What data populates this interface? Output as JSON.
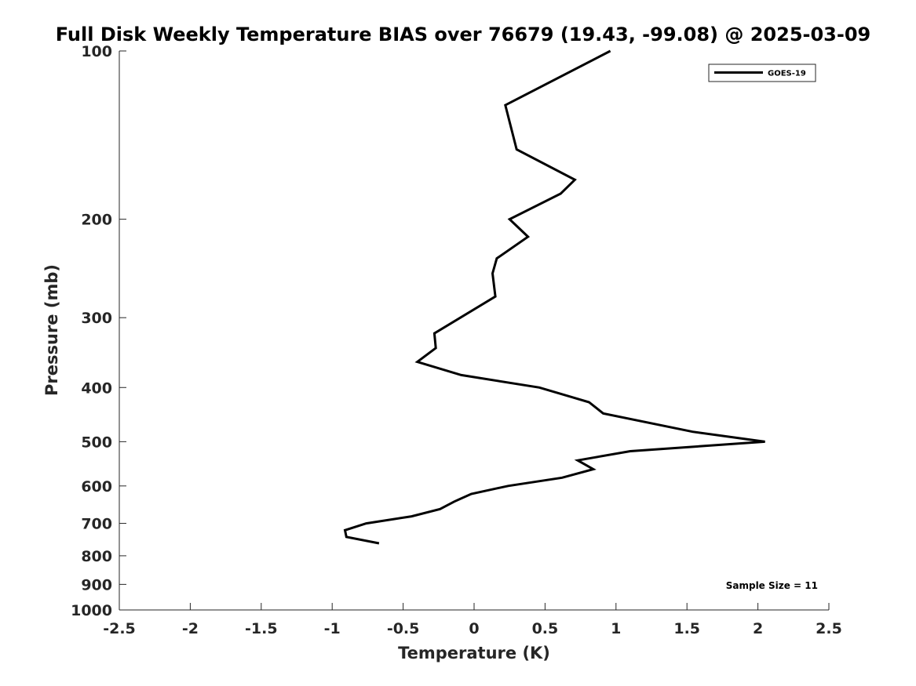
{
  "chart_data": {
    "type": "line",
    "title": "Full Disk Weekly Temperature BIAS over 76679 (19.43, -99.08) @ 2025-03-09",
    "xlabel": "Temperature (K)",
    "ylabel": "Pressure (mb)",
    "xlim": [
      -2.5,
      2.5
    ],
    "ylim": [
      1000,
      100
    ],
    "y_scale": "log",
    "y_reversed": true,
    "grid": false,
    "legend_position": "top-right",
    "x_ticks": [
      -2.5,
      -2,
      -1.5,
      -1,
      -0.5,
      0,
      0.5,
      1,
      1.5,
      2,
      2.5
    ],
    "x_tick_labels": [
      "-2.5",
      "-2",
      "-1.5",
      "-1",
      "-0.5",
      "0",
      "0.5",
      "1",
      "1.5",
      "2",
      "2.5"
    ],
    "y_ticks": [
      100,
      200,
      300,
      400,
      500,
      600,
      700,
      800,
      900,
      1000
    ],
    "y_tick_labels": [
      "100",
      "200",
      "300",
      "400",
      "500",
      "600",
      "700",
      "800",
      "900",
      "1000"
    ],
    "series": [
      {
        "name": "GOES-19",
        "color": "#000000",
        "points": [
          {
            "x": 0.96,
            "p": 100
          },
          {
            "x": 0.22,
            "p": 125
          },
          {
            "x": 0.3,
            "p": 150
          },
          {
            "x": 0.71,
            "p": 170
          },
          {
            "x": 0.61,
            "p": 180
          },
          {
            "x": 0.25,
            "p": 200
          },
          {
            "x": 0.38,
            "p": 215
          },
          {
            "x": 0.16,
            "p": 235
          },
          {
            "x": 0.13,
            "p": 250
          },
          {
            "x": 0.15,
            "p": 275
          },
          {
            "x": -0.28,
            "p": 320
          },
          {
            "x": -0.27,
            "p": 340
          },
          {
            "x": -0.4,
            "p": 360
          },
          {
            "x": -0.09,
            "p": 380
          },
          {
            "x": 0.46,
            "p": 400
          },
          {
            "x": 0.81,
            "p": 425
          },
          {
            "x": 0.91,
            "p": 445
          },
          {
            "x": 1.54,
            "p": 480
          },
          {
            "x": 2.05,
            "p": 500
          },
          {
            "x": 1.1,
            "p": 520
          },
          {
            "x": 0.73,
            "p": 540
          },
          {
            "x": 0.84,
            "p": 560
          },
          {
            "x": 0.62,
            "p": 580
          },
          {
            "x": 0.24,
            "p": 600
          },
          {
            "x": -0.02,
            "p": 620
          },
          {
            "x": -0.14,
            "p": 640
          },
          {
            "x": -0.24,
            "p": 660
          },
          {
            "x": -0.44,
            "p": 680
          },
          {
            "x": -0.76,
            "p": 700
          },
          {
            "x": -0.91,
            "p": 720
          },
          {
            "x": -0.9,
            "p": 740
          },
          {
            "x": -0.67,
            "p": 760
          }
        ]
      }
    ],
    "annotations": [
      {
        "text": "Sample Size = 11",
        "position": "bottom-right"
      }
    ]
  }
}
